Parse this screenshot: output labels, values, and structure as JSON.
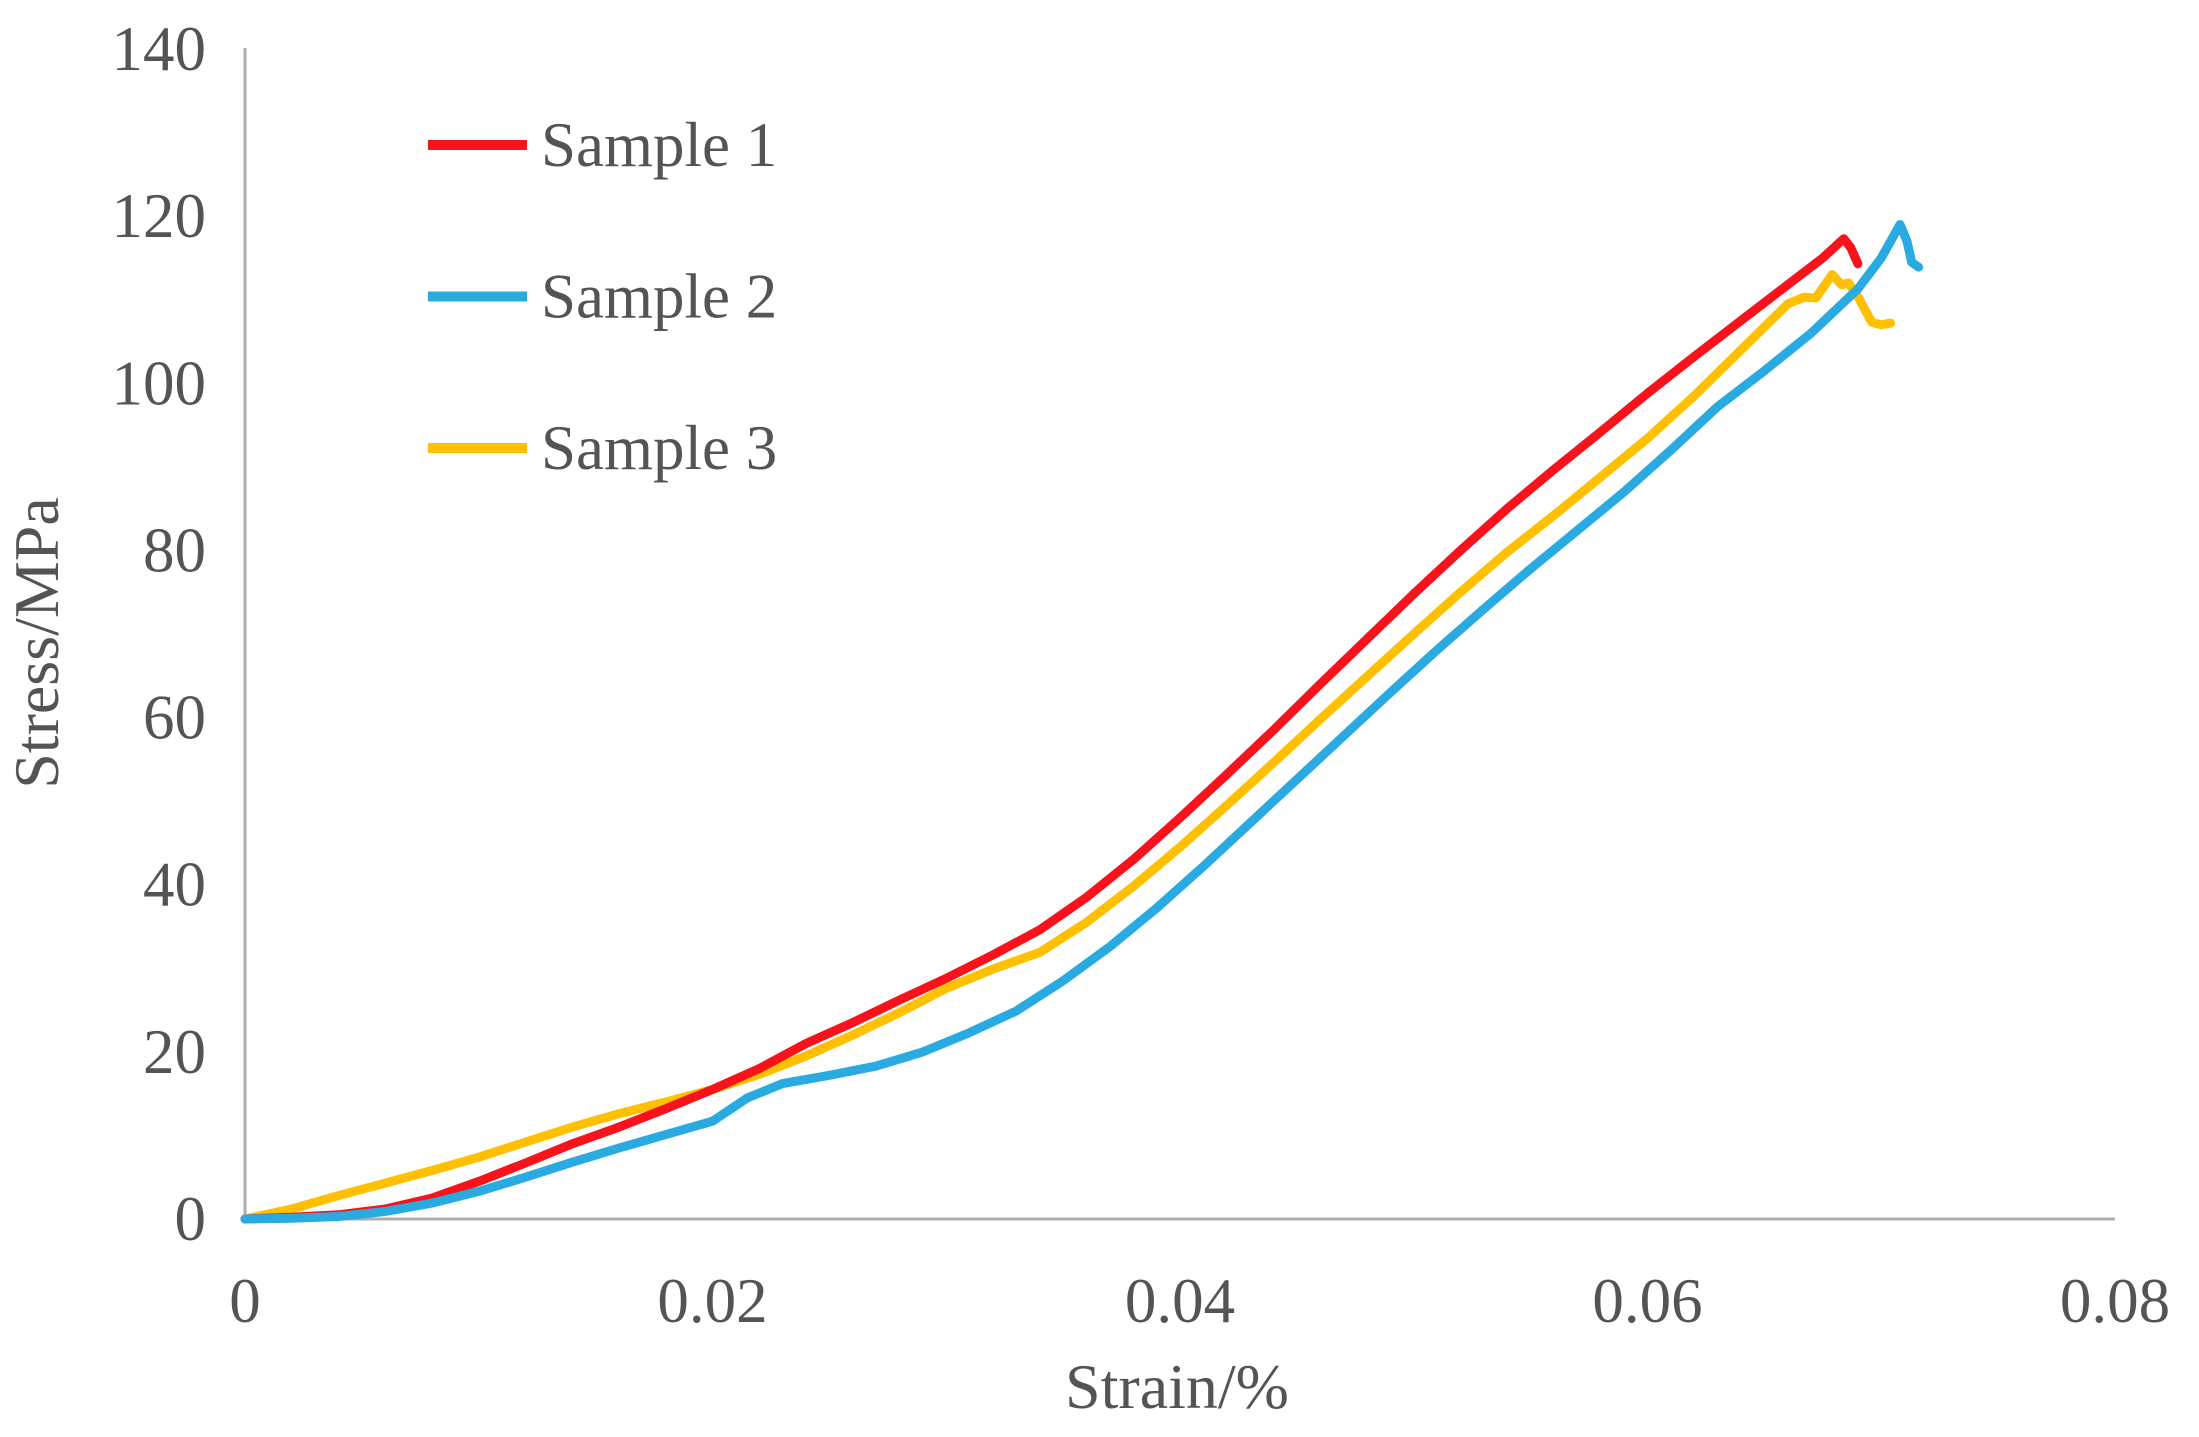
{
  "figure": {
    "background": "#FFFFFF"
  },
  "chart_data": {
    "type": "line",
    "title": "",
    "xlabel": "Strain/%",
    "ylabel": "Stress/MPa",
    "xlim": [
      0,
      0.08
    ],
    "ylim": [
      0,
      140
    ],
    "grid": false,
    "axis_color": "#ACACAC",
    "text_color": "#545454",
    "xticks": {
      "values": [
        0,
        0.02,
        0.04,
        0.06,
        0.08
      ],
      "labels": [
        "0",
        "0.02",
        "0.04",
        "0.06",
        "0.08"
      ]
    },
    "yticks": {
      "values": [
        0,
        20,
        40,
        60,
        80,
        100,
        120,
        140
      ],
      "labels": [
        "0",
        "20",
        "40",
        "60",
        "80",
        "100",
        "120",
        "140"
      ]
    },
    "legend": {
      "position": "upper-left-inside",
      "entries": [
        "Sample 1",
        "Sample 2",
        "Sample 3"
      ]
    },
    "series": [
      {
        "name": "Sample 1",
        "color": "#F8121B",
        "points": [
          [
            0,
            0
          ],
          [
            0.002,
            0.2
          ],
          [
            0.004,
            0.5
          ],
          [
            0.006,
            1.2
          ],
          [
            0.008,
            2.5
          ],
          [
            0.01,
            4.5
          ],
          [
            0.012,
            6.7
          ],
          [
            0.014,
            9.0
          ],
          [
            0.016,
            11.0
          ],
          [
            0.018,
            13.2
          ],
          [
            0.02,
            15.5
          ],
          [
            0.022,
            18.0
          ],
          [
            0.024,
            21.0
          ],
          [
            0.026,
            23.5
          ],
          [
            0.028,
            26.2
          ],
          [
            0.03,
            28.8
          ],
          [
            0.032,
            31.6
          ],
          [
            0.034,
            34.6
          ],
          [
            0.036,
            38.5
          ],
          [
            0.038,
            43.0
          ],
          [
            0.04,
            48.0
          ],
          [
            0.042,
            53.2
          ],
          [
            0.044,
            58.5
          ],
          [
            0.046,
            64.0
          ],
          [
            0.048,
            69.4
          ],
          [
            0.05,
            74.8
          ],
          [
            0.052,
            80.0
          ],
          [
            0.054,
            85.0
          ],
          [
            0.056,
            89.7
          ],
          [
            0.058,
            94.2
          ],
          [
            0.06,
            98.8
          ],
          [
            0.062,
            103.2
          ],
          [
            0.064,
            107.5
          ],
          [
            0.066,
            111.8
          ],
          [
            0.0675,
            115.0
          ],
          [
            0.0684,
            117.3
          ],
          [
            0.0687,
            116.2
          ],
          [
            0.069,
            114.3
          ]
        ]
      },
      {
        "name": "Sample 2",
        "color": "#29ABE2",
        "points": [
          [
            0,
            0
          ],
          [
            0.002,
            0.1
          ],
          [
            0.004,
            0.3
          ],
          [
            0.006,
            0.9
          ],
          [
            0.008,
            1.9
          ],
          [
            0.01,
            3.3
          ],
          [
            0.012,
            5.0
          ],
          [
            0.014,
            6.8
          ],
          [
            0.016,
            8.5
          ],
          [
            0.018,
            10.1
          ],
          [
            0.02,
            11.7
          ],
          [
            0.0215,
            14.5
          ],
          [
            0.023,
            16.2
          ],
          [
            0.025,
            17.2
          ],
          [
            0.027,
            18.3
          ],
          [
            0.029,
            20.0
          ],
          [
            0.031,
            22.3
          ],
          [
            0.033,
            24.9
          ],
          [
            0.035,
            28.5
          ],
          [
            0.037,
            32.6
          ],
          [
            0.039,
            37.2
          ],
          [
            0.041,
            42.2
          ],
          [
            0.043,
            47.4
          ],
          [
            0.045,
            52.6
          ],
          [
            0.047,
            57.8
          ],
          [
            0.049,
            63.0
          ],
          [
            0.051,
            68.1
          ],
          [
            0.053,
            73.0
          ],
          [
            0.055,
            77.8
          ],
          [
            0.057,
            82.4
          ],
          [
            0.059,
            87.0
          ],
          [
            0.061,
            92.0
          ],
          [
            0.063,
            97.2
          ],
          [
            0.065,
            101.5
          ],
          [
            0.067,
            106.0
          ],
          [
            0.069,
            111.3
          ],
          [
            0.07,
            115.0
          ],
          [
            0.0708,
            119.0
          ],
          [
            0.0711,
            117.0
          ],
          [
            0.0713,
            114.5
          ],
          [
            0.0716,
            113.9
          ]
        ]
      },
      {
        "name": "Sample 3",
        "color": "#FFC000",
        "points": [
          [
            0,
            0
          ],
          [
            0.002,
            1.2
          ],
          [
            0.004,
            2.8
          ],
          [
            0.006,
            4.3
          ],
          [
            0.008,
            5.8
          ],
          [
            0.01,
            7.4
          ],
          [
            0.012,
            9.2
          ],
          [
            0.014,
            11.0
          ],
          [
            0.016,
            12.6
          ],
          [
            0.018,
            14.0
          ],
          [
            0.02,
            15.5
          ],
          [
            0.022,
            17.3
          ],
          [
            0.024,
            19.5
          ],
          [
            0.026,
            22.0
          ],
          [
            0.028,
            24.7
          ],
          [
            0.03,
            27.6
          ],
          [
            0.032,
            29.9
          ],
          [
            0.034,
            31.9
          ],
          [
            0.036,
            35.5
          ],
          [
            0.038,
            39.8
          ],
          [
            0.04,
            44.5
          ],
          [
            0.042,
            49.5
          ],
          [
            0.044,
            54.6
          ],
          [
            0.046,
            59.8
          ],
          [
            0.048,
            64.9
          ],
          [
            0.05,
            70.0
          ],
          [
            0.052,
            75.0
          ],
          [
            0.054,
            79.8
          ],
          [
            0.056,
            84.2
          ],
          [
            0.058,
            88.8
          ],
          [
            0.06,
            93.4
          ],
          [
            0.062,
            98.5
          ],
          [
            0.064,
            104.0
          ],
          [
            0.066,
            109.5
          ],
          [
            0.0667,
            110.3
          ],
          [
            0.0672,
            110.2
          ],
          [
            0.0679,
            113.0
          ],
          [
            0.0683,
            111.8
          ],
          [
            0.0686,
            112.0
          ],
          [
            0.069,
            110.4
          ],
          [
            0.0693,
            108.8
          ],
          [
            0.0696,
            107.3
          ],
          [
            0.07,
            107.0
          ],
          [
            0.0704,
            107.2
          ]
        ]
      }
    ]
  }
}
